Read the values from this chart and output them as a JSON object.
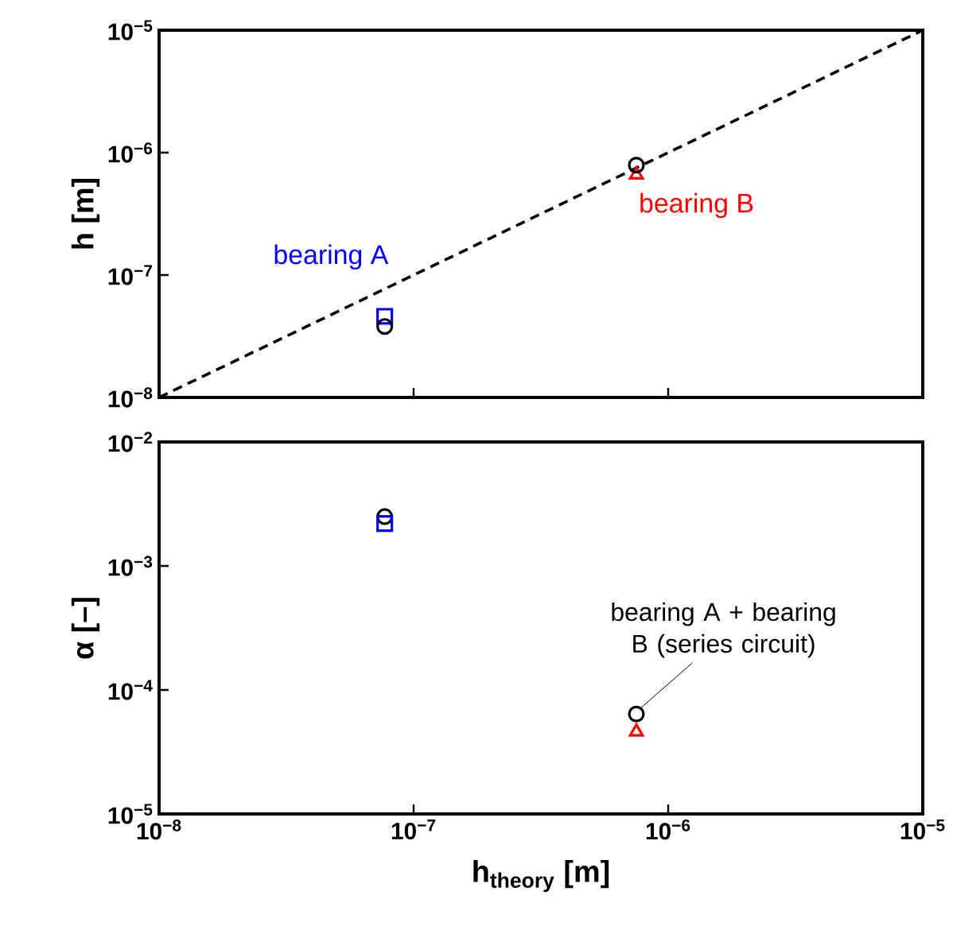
{
  "chart_data": [
    {
      "type": "scatter",
      "ylabel": "h [m]",
      "log": "xy",
      "tick_labels": "y",
      "xlim": [
        1e-08,
        1e-05
      ],
      "ylim": [
        1e-08,
        1e-05
      ],
      "xticks": [
        {
          "value": 1e-08,
          "label": null
        },
        {
          "value": 1e-07,
          "label": null
        },
        {
          "value": 1e-06,
          "label": null
        },
        {
          "value": 1e-05,
          "label": null
        }
      ],
      "yticks": [
        {
          "value": 1e-08,
          "label": "10$^{−8}$"
        },
        {
          "value": 1e-07,
          "label": "10$^{−7}$"
        },
        {
          "value": 1e-06,
          "label": "10$^{−6}$"
        },
        {
          "value": 1e-05,
          "label": "10$^{−5}$"
        }
      ],
      "series": [
        {
          "type": "line",
          "line_style": "dashed",
          "marker": "none",
          "color": "#000000",
          "x": [
            1e-08,
            1e-05
          ],
          "values": [
            1e-08,
            1e-05
          ]
        },
        {
          "name": "bearing A",
          "marker": "square",
          "color": "#0000ff",
          "x": [
            7.7e-08
          ],
          "values": [
            4.6e-08
          ]
        },
        {
          "name": "bearing B",
          "marker": "triangle",
          "color": "#ff0000",
          "x": [
            7.5e-07
          ],
          "values": [
            6.6e-07
          ]
        },
        {
          "marker": "circle",
          "color": "#000000",
          "x": [
            7.7e-08,
            7.5e-07
          ],
          "values": [
            3.8e-08,
            7.9e-07
          ]
        }
      ]
    },
    {
      "type": "scatter",
      "xlabel": "h$_{theory}$ [m]",
      "ylabel": "α [–]",
      "log": "xy",
      "xlim": [
        1e-08,
        1e-05
      ],
      "ylim": [
        1e-05,
        0.01
      ],
      "xticks": [
        {
          "value": 1e-08,
          "label": "10$^{−8}$"
        },
        {
          "value": 1e-07,
          "label": "10$^{−7}$"
        },
        {
          "value": 1e-06,
          "label": "10$^{−6}$"
        },
        {
          "value": 1e-05,
          "label": "10$^{−5}$"
        }
      ],
      "yticks": [
        {
          "value": 1e-05,
          "label": "10$^{−5}$"
        },
        {
          "value": 0.0001,
          "label": "10$^{−4}$"
        },
        {
          "value": 0.001,
          "label": "10$^{−3}$"
        },
        {
          "value": 0.01,
          "label": "10$^{−2}$"
        }
      ],
      "annotations": [
        {
          "text": "bearing A + bearing B (series circuit)",
          "x": 7.5e-07,
          "y": 6.4e-05
        }
      ],
      "series": [
        {
          "marker": "circle",
          "color": "#000000",
          "x": [
            7.7e-08,
            7.5e-07
          ],
          "values": [
            0.0025,
            6.4e-05
          ]
        },
        {
          "marker": "square",
          "color": "#0000ff",
          "x": [
            7.7e-08
          ],
          "values": [
            0.0022
          ]
        },
        {
          "marker": "triangle",
          "color": "#ff0000",
          "x": [
            7.5e-07
          ],
          "values": [
            4.6e-05
          ]
        }
      ]
    }
  ]
}
